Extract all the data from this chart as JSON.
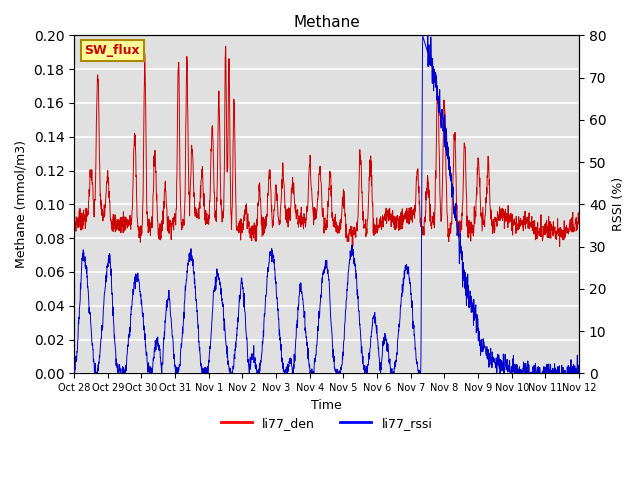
{
  "title": "Methane",
  "xlabel": "Time",
  "ylabel_left": "Methane (mmol/m3)",
  "ylabel_right": "RSSI (%)",
  "legend_labels": [
    "li77_den",
    "li77_rssi"
  ],
  "legend_colors": [
    "red",
    "blue"
  ],
  "annotation_text": "SW_flux",
  "annotation_bg": "#FFFF99",
  "annotation_border": "#AA8800",
  "annotation_text_color": "#CC0000",
  "ylim_left": [
    0.0,
    0.2
  ],
  "ylim_right": [
    0,
    80
  ],
  "yticks_left": [
    0.0,
    0.02,
    0.04,
    0.06,
    0.08,
    0.1,
    0.12,
    0.14,
    0.16,
    0.18,
    0.2
  ],
  "yticks_right": [
    0,
    10,
    20,
    30,
    40,
    50,
    60,
    70,
    80
  ],
  "bg_color": "#E0E0E0",
  "grid_color": "white",
  "line_color_red": "#CC0000",
  "line_color_blue": "#0000CC",
  "xtick_labels": [
    "Oct 28",
    "Oct 29",
    "Oct 30",
    "Oct 31",
    "Nov 1",
    "Nov 2",
    "Nov 3",
    "Nov 4",
    "Nov 5",
    "Nov 6",
    "Nov 7",
    "Nov 8",
    "Nov 9",
    "Nov 10",
    "Nov 11",
    "Nov 12"
  ],
  "total_days": 15,
  "n_points": 2000
}
